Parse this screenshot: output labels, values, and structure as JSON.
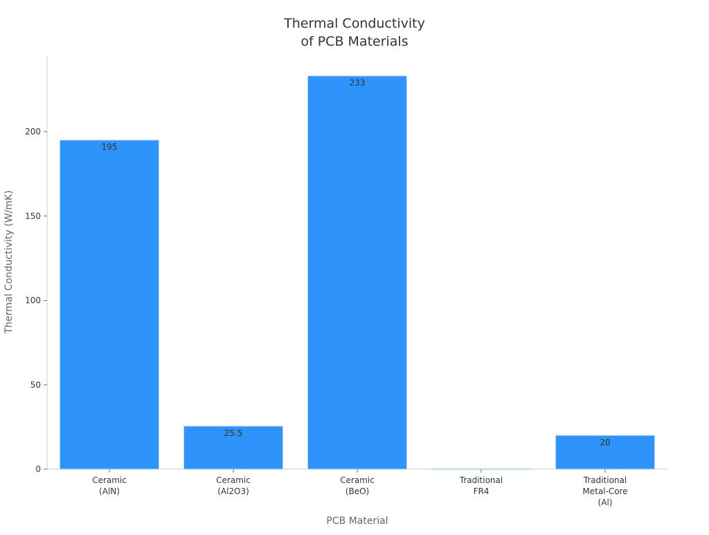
{
  "chart_data": {
    "type": "bar",
    "title": [
      "Thermal Conductivity",
      "of PCB Materials"
    ],
    "xlabel": "PCB Material",
    "ylabel": "Thermal Conductivity (W/mK)",
    "categories": [
      [
        "Ceramic",
        "(AlN)"
      ],
      [
        "Ceramic",
        "(Al2O3)"
      ],
      [
        "Ceramic",
        "(BeO)"
      ],
      [
        "Traditional",
        "FR4"
      ],
      [
        "Traditional",
        "Metal-Core",
        "(Al)"
      ]
    ],
    "values": [
      195,
      25.5,
      233,
      0.3,
      20
    ],
    "data_labels": [
      "195",
      "25.5",
      "233",
      "",
      "20"
    ],
    "ylim": [
      0,
      240
    ],
    "yticks": [
      0,
      50,
      100,
      150,
      200
    ],
    "grid": false,
    "bar_color": "#2e93fa"
  }
}
